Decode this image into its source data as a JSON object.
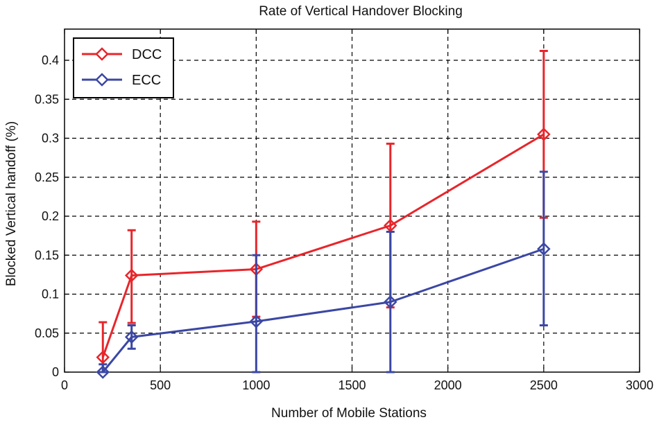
{
  "chart_data": {
    "type": "line",
    "title": "Rate of Vertical Handover Blocking",
    "xlabel": "Number of Mobile Stations",
    "ylabel": "Blocked Vertical handoff (%)",
    "xlim": [
      0,
      3000
    ],
    "ylim": [
      0,
      0.44
    ],
    "xticks": [
      0,
      500,
      1000,
      1500,
      2000,
      2500,
      3000
    ],
    "yticks": [
      0,
      0.05,
      0.1,
      0.15,
      0.2,
      0.25,
      0.3,
      0.35,
      0.4
    ],
    "xtick_labels": [
      "0",
      "500",
      "1000",
      "1500",
      "2000",
      "2500",
      "3000"
    ],
    "ytick_labels": [
      "0",
      "0.05",
      "0.1",
      "0.15",
      "0.2",
      "0.25",
      "0.3",
      "0.35",
      "0.4"
    ],
    "grid": true,
    "legend_position": "top-left",
    "series": [
      {
        "name": "DCC",
        "color": "#e8252a",
        "x": [
          200,
          350,
          1000,
          1700,
          2500
        ],
        "y": [
          0.019,
          0.124,
          0.132,
          0.188,
          0.305
        ],
        "err_low": [
          0.0,
          0.063,
          0.071,
          0.083,
          0.198
        ],
        "err_high": [
          0.064,
          0.182,
          0.193,
          0.293,
          0.412
        ]
      },
      {
        "name": "ECC",
        "color": "#3b47a4",
        "x": [
          200,
          350,
          1000,
          1700,
          2500
        ],
        "y": [
          0.0,
          0.045,
          0.065,
          0.09,
          0.158
        ],
        "err_low": [
          0.0,
          0.03,
          0.0,
          0.0,
          0.06
        ],
        "err_high": [
          0.01,
          0.06,
          0.15,
          0.18,
          0.257
        ]
      }
    ]
  }
}
